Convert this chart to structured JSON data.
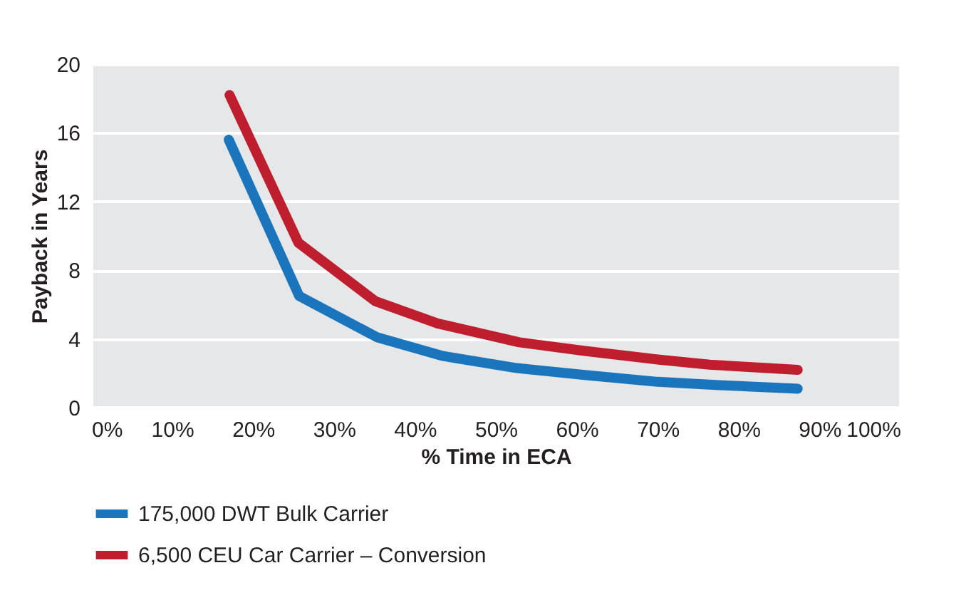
{
  "chart_data": {
    "type": "line",
    "xlabel": "% Time in ECA",
    "ylabel": "Payback in Years",
    "xlim": [
      0,
      100
    ],
    "xticks": [
      {
        "value": 0,
        "label": "0%"
      },
      {
        "value": 10,
        "label": "10%"
      },
      {
        "value": 20,
        "label": "20%"
      },
      {
        "value": 30,
        "label": "30%"
      },
      {
        "value": 40,
        "label": "40%"
      },
      {
        "value": 50,
        "label": "50%"
      },
      {
        "value": 60,
        "label": "60%"
      },
      {
        "value": 70,
        "label": "70%"
      },
      {
        "value": 80,
        "label": "80%"
      },
      {
        "value": 90,
        "label": "90%"
      },
      {
        "value": 100,
        "label": "100%"
      }
    ],
    "ylim": [
      0,
      20
    ],
    "yticks": [
      0,
      4,
      8,
      12,
      16,
      20
    ],
    "grid": "y",
    "legend": "bottom left",
    "line_style": "solid",
    "series": [
      {
        "name": "175,000 DWT Bulk Carrier",
        "color": "#1b75bc",
        "x": [
          17,
          25.7,
          35.3,
          43.5,
          52.6,
          61,
          70,
          78,
          87.3
        ],
        "values": [
          15.6,
          6.5,
          4.1,
          3.0,
          2.3,
          1.9,
          1.5,
          1.3,
          1.1
        ]
      },
      {
        "name": "6,500 CEU Car Carrier – Conversion",
        "color": "#be1e2d",
        "x": [
          17.1,
          25.6,
          35.1,
          42.8,
          52.9,
          61,
          70,
          76.4,
          87.3
        ],
        "values": [
          18.2,
          9.6,
          6.2,
          4.9,
          3.8,
          3.3,
          2.8,
          2.5,
          2.2
        ]
      }
    ]
  }
}
